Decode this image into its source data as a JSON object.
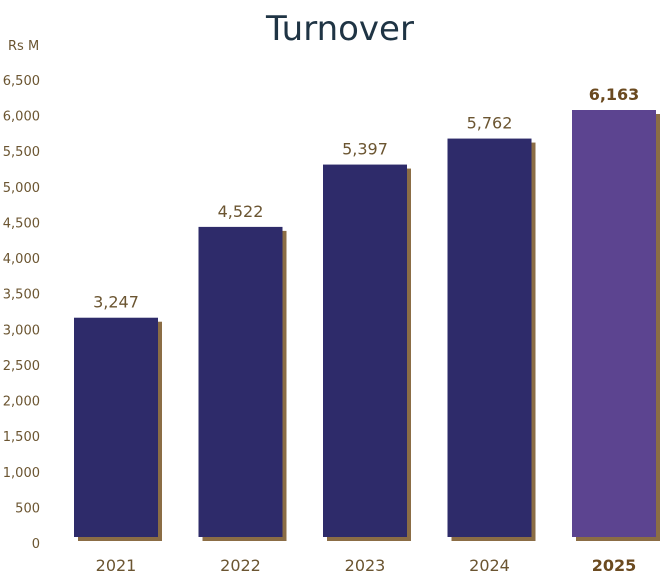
{
  "chart_data": {
    "type": "bar",
    "title": "Turnover",
    "ylabel": "Rs M",
    "categories": [
      "2021",
      "2022",
      "2023",
      "2024",
      "2025"
    ],
    "values": [
      3247,
      4522,
      5397,
      5762,
      6163
    ],
    "value_labels": [
      "3,247",
      "4,522",
      "5,397",
      "5,762",
      "6,163"
    ],
    "highlight": "2025",
    "ylim": [
      0,
      6500
    ],
    "yticks": [
      0,
      500,
      1000,
      1500,
      2000,
      2500,
      3000,
      3500,
      4000,
      4500,
      5000,
      5500,
      6000,
      6500
    ],
    "ytick_labels": [
      "0",
      "500",
      "1,000",
      "1,500",
      "2,000",
      "2,500",
      "3,000",
      "3,500",
      "4,000",
      "4,500",
      "5,000",
      "5,500",
      "6,000",
      "6,500"
    ],
    "grid": false,
    "colors": {
      "bar": "#2e2b6a",
      "highlight_bar": "#5c4490",
      "shadow": "#8b6d45",
      "text": "#6b5531",
      "title": "#1f3444"
    }
  }
}
